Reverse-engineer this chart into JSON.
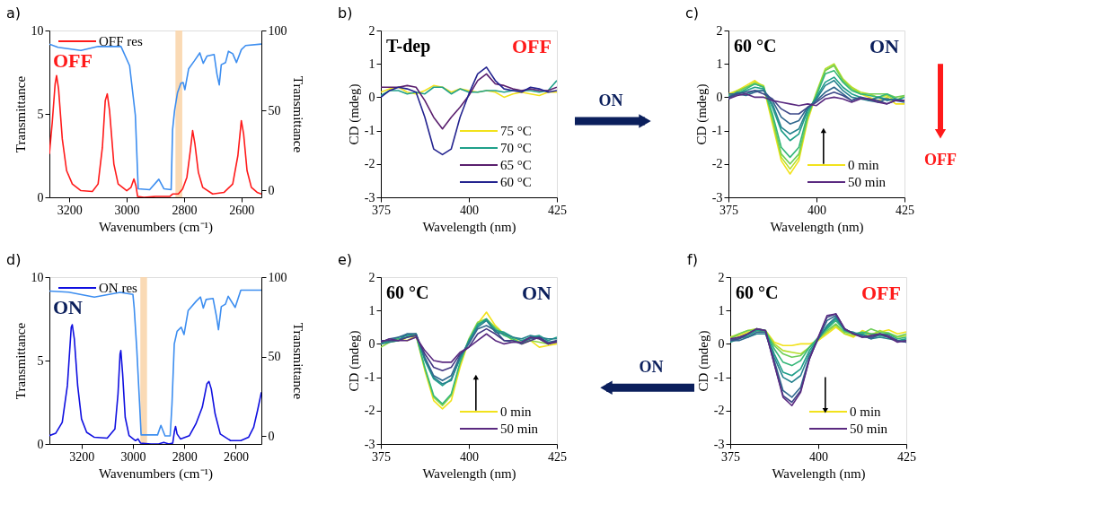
{
  "chart_data": [
    {
      "type": "line",
      "title": "a)",
      "xlabel": "Wavenumbers (cm⁻¹)",
      "ylabel": "Transmittance",
      "y2label": "Transmittance",
      "xlim": [
        3270,
        2530
      ],
      "xticks": [
        3200,
        3000,
        2800,
        2600
      ],
      "ylim": [
        0,
        10
      ],
      "yticks": [
        0,
        5,
        10
      ],
      "y2lim": [
        -4.3,
        100
      ],
      "y2ticks": [
        0,
        50,
        100
      ],
      "grid": false,
      "legend": "top left",
      "annotations": [
        "OFF"
      ],
      "bands": [
        {
          "axis": "x",
          "from": 2830,
          "to": 2806,
          "color": "#f9d3a8"
        }
      ],
      "series": [
        {
          "name": "OFF res",
          "color": "#ff1a1a",
          "x": [
            3270,
            3260,
            3250,
            3245,
            3238,
            3225,
            3210,
            3190,
            3160,
            3120,
            3100,
            3085,
            3075,
            3068,
            3060,
            3045,
            3030,
            3000,
            2985,
            2975,
            2968,
            2962,
            2940,
            2900,
            2850,
            2840,
            2820,
            2805,
            2790,
            2778,
            2770,
            2762,
            2750,
            2735,
            2700,
            2660,
            2630,
            2612,
            2600,
            2592,
            2580,
            2565,
            2545,
            2530
          ],
          "values": [
            2.6,
            4.5,
            6.8,
            7.3,
            6.5,
            3.5,
            1.6,
            0.8,
            0.4,
            0.35,
            0.8,
            3.0,
            5.8,
            6.2,
            5.2,
            2.0,
            0.8,
            0.4,
            0.6,
            1.1,
            0.7,
            0.05,
            0.0,
            0.05,
            0.05,
            0.2,
            0.2,
            0.5,
            1.2,
            2.8,
            4.0,
            3.2,
            1.5,
            0.6,
            0.2,
            0.3,
            0.8,
            2.5,
            4.6,
            3.8,
            1.6,
            0.6,
            0.3,
            0.2
          ]
        },
        {
          "color": "#3d8ef0",
          "axis": "y2",
          "x": [
            3270,
            3240,
            3160,
            3100,
            3020,
            2990,
            2970,
            2960,
            2920,
            2888,
            2870,
            2845,
            2840,
            2833,
            2823,
            2811,
            2803,
            2797,
            2784,
            2764,
            2745,
            2733,
            2720,
            2695,
            2685,
            2677,
            2670,
            2655,
            2645,
            2630,
            2617,
            2600,
            2585,
            2530
          ],
          "values": [
            91.5,
            89.5,
            87.5,
            90,
            90,
            78,
            47,
            1,
            0.5,
            7,
            1,
            0.5,
            38,
            50,
            61,
            67,
            67.5,
            63,
            76,
            81,
            86,
            79.5,
            84,
            85,
            72.6,
            66,
            78.6,
            80,
            87,
            85.5,
            80,
            88,
            90.6,
            91.5
          ]
        }
      ]
    },
    {
      "type": "line",
      "title": "b)",
      "xlabel": "Wavelength (nm)",
      "ylabel": "CD (mdeg)",
      "x": [
        375,
        377.5,
        380,
        382.5,
        385,
        387.5,
        390,
        392.5,
        395,
        397.5,
        400,
        402.5,
        405,
        407.5,
        410,
        412.5,
        415,
        417.5,
        420,
        422.5,
        425
      ],
      "xlim": [
        375,
        425
      ],
      "xticks": [
        375,
        400,
        425
      ],
      "ylim": [
        -3,
        2
      ],
      "yticks": [
        -3,
        -2,
        -1,
        0,
        1,
        2
      ],
      "grid": false,
      "legend": "bottom right",
      "annotations": [
        "T-dep",
        "OFF",
        "ON"
      ],
      "series": [
        {
          "name": "75 °C",
          "color": "#f2e21c",
          "values": [
            0.15,
            0.25,
            0.3,
            0.15,
            0.1,
            0.2,
            0.35,
            0.3,
            0.15,
            0.25,
            0.2,
            0.15,
            0.2,
            0.15,
            0.0,
            0.1,
            0.15,
            0.1,
            0.05,
            0.15,
            0.15
          ]
        },
        {
          "name": "70 °C",
          "color": "#1fa08a",
          "values": [
            0.05,
            0.2,
            0.2,
            0.1,
            0.15,
            0.1,
            0.3,
            0.3,
            0.1,
            0.25,
            0.15,
            0.15,
            0.2,
            0.2,
            0.15,
            0.2,
            0.2,
            0.2,
            0.15,
            0.2,
            0.5
          ]
        },
        {
          "name": "65 °C",
          "color": "#5a1f6e",
          "values": [
            0.3,
            0.3,
            0.3,
            0.35,
            0.3,
            -0.1,
            -0.6,
            -0.95,
            -0.6,
            -0.3,
            0.05,
            0.5,
            0.7,
            0.4,
            0.35,
            0.25,
            0.2,
            0.25,
            0.2,
            0.2,
            0.3
          ]
        },
        {
          "name": "60 °C",
          "color": "#23238f",
          "values": [
            0.0,
            0.2,
            0.3,
            0.25,
            0.15,
            -0.6,
            -1.55,
            -1.72,
            -1.55,
            -0.6,
            0.1,
            0.7,
            0.9,
            0.5,
            0.25,
            0.2,
            0.15,
            0.3,
            0.25,
            0.15,
            0.2
          ]
        }
      ]
    },
    {
      "type": "line",
      "title": "c)",
      "xlabel": "Wavelength (nm)",
      "ylabel": "CD (mdeg)",
      "x": [
        375,
        377.5,
        380,
        382.5,
        385,
        387.5,
        390,
        392.5,
        395,
        397.5,
        400,
        402.5,
        405,
        407.5,
        410,
        412.5,
        415,
        417.5,
        420,
        422.5,
        425
      ],
      "xlim": [
        375,
        425
      ],
      "xticks": [
        375,
        400,
        425
      ],
      "ylim": [
        -3,
        2
      ],
      "yticks": [
        -3,
        -2,
        -1,
        0,
        1,
        2
      ],
      "grid": false,
      "legend": "bottom right",
      "annotations": [
        "60 °C",
        "ON",
        "OFF"
      ],
      "series": [
        {
          "name": "0 min",
          "color": "#f2e21c",
          "values": [
            0.1,
            0.2,
            0.35,
            0.5,
            0.3,
            -0.8,
            -1.9,
            -2.3,
            -1.9,
            -0.7,
            0.1,
            0.8,
            0.95,
            0.5,
            0.3,
            0.1,
            0.0,
            -0.1,
            0.0,
            -0.2,
            -0.2
          ]
        },
        {
          "color": "#b5de2b",
          "values": [
            0.05,
            0.2,
            0.3,
            0.45,
            0.35,
            -0.7,
            -1.8,
            -2.15,
            -1.8,
            -0.6,
            0.15,
            0.85,
            1.0,
            0.55,
            0.3,
            0.15,
            0.1,
            0.0,
            0.05,
            -0.1,
            0.05
          ]
        },
        {
          "color": "#6ece58",
          "values": [
            0.0,
            0.15,
            0.3,
            0.4,
            0.3,
            -0.6,
            -1.7,
            -2.0,
            -1.7,
            -0.6,
            0.1,
            0.8,
            0.95,
            0.5,
            0.25,
            0.1,
            0.1,
            0.1,
            0.1,
            0.0,
            0.05
          ]
        },
        {
          "color": "#35b779",
          "values": [
            0.05,
            0.1,
            0.25,
            0.4,
            0.3,
            -0.5,
            -1.5,
            -1.8,
            -1.5,
            -0.5,
            0.05,
            0.7,
            0.8,
            0.45,
            0.2,
            0.1,
            0.05,
            0.0,
            0.1,
            -0.05,
            -0.1
          ]
        },
        {
          "color": "#1f9e89",
          "values": [
            -0.05,
            0.1,
            0.2,
            0.3,
            0.25,
            -0.3,
            -1.0,
            -1.3,
            -1.1,
            -0.4,
            0.0,
            0.45,
            0.6,
            0.3,
            0.1,
            0.0,
            -0.1,
            0.0,
            -0.05,
            -0.1,
            0.0
          ]
        },
        {
          "color": "#26828e",
          "values": [
            0.0,
            0.15,
            0.1,
            0.2,
            0.2,
            -0.2,
            -0.9,
            -1.1,
            -0.95,
            -0.35,
            -0.05,
            0.35,
            0.5,
            0.2,
            0.0,
            -0.05,
            -0.1,
            0.0,
            -0.1,
            -0.05,
            -0.1
          ]
        },
        {
          "color": "#31688e",
          "values": [
            0.1,
            0.1,
            0.05,
            0.15,
            0.2,
            -0.1,
            -0.6,
            -0.8,
            -0.7,
            -0.3,
            -0.1,
            0.15,
            0.3,
            0.1,
            -0.1,
            0.0,
            -0.1,
            -0.15,
            -0.05,
            -0.1,
            -0.15
          ]
        },
        {
          "color": "#3e4989",
          "values": [
            0.0,
            0.1,
            0.15,
            0.2,
            0.1,
            -0.05,
            -0.35,
            -0.5,
            -0.5,
            -0.3,
            -0.15,
            0.05,
            0.15,
            0.05,
            -0.1,
            0.0,
            -0.05,
            -0.1,
            -0.2,
            -0.1,
            -0.1
          ]
        },
        {
          "name": "50 min",
          "color": "#5a2a80",
          "values": [
            -0.05,
            0.05,
            0.1,
            0.0,
            0.0,
            -0.1,
            -0.15,
            -0.2,
            -0.25,
            -0.2,
            -0.25,
            -0.05,
            0.0,
            -0.05,
            -0.15,
            -0.05,
            -0.05,
            -0.15,
            -0.2,
            -0.1,
            -0.1
          ]
        }
      ]
    },
    {
      "type": "line",
      "title": "d)",
      "xlabel": "Wavenumbers (cm⁻¹)",
      "ylabel": "Transmittance",
      "y2label": "Transmittance",
      "xlim": [
        3325,
        2500
      ],
      "xticks": [
        3200,
        3000,
        2800,
        2600
      ],
      "ylim": [
        0,
        10
      ],
      "yticks": [
        0,
        5,
        10
      ],
      "y2lim": [
        -4.8,
        100
      ],
      "y2ticks": [
        0,
        50,
        100
      ],
      "grid": false,
      "legend": "top left",
      "annotations": [
        "ON"
      ],
      "bands": [
        {
          "axis": "x",
          "from": 2971,
          "to": 2945,
          "color": "#f9d3a8"
        }
      ],
      "series": [
        {
          "name": "ON res",
          "color": "#1010e0",
          "x": [
            3325,
            3300,
            3275,
            3255,
            3240,
            3236,
            3228,
            3215,
            3200,
            3180,
            3150,
            3100,
            3070,
            3058,
            3050,
            3047,
            3040,
            3030,
            3015,
            2990,
            2980,
            2970,
            2930,
            2900,
            2880,
            2860,
            2845,
            2838,
            2834,
            2828,
            2815,
            2780,
            2755,
            2730,
            2712,
            2704,
            2695,
            2680,
            2660,
            2620,
            2580,
            2550,
            2530,
            2515,
            2500
          ],
          "values": [
            0.5,
            0.65,
            1.3,
            3.5,
            7.0,
            7.15,
            6.3,
            3.5,
            1.5,
            0.7,
            0.4,
            0.35,
            0.9,
            3.0,
            5.4,
            5.6,
            4.2,
            1.6,
            0.5,
            0.2,
            0.3,
            0.05,
            0.0,
            0.0,
            0.1,
            0.0,
            0.05,
            0.8,
            1.05,
            0.6,
            0.3,
            0.5,
            1.2,
            2.2,
            3.6,
            3.75,
            3.3,
            1.8,
            0.6,
            0.2,
            0.2,
            0.4,
            1.0,
            2.0,
            3.1
          ]
        },
        {
          "color": "#3d8ef0",
          "axis": "y2",
          "x": [
            3325,
            3250,
            3150,
            3050,
            3000,
            2995,
            2985,
            2974,
            2968,
            2904,
            2891,
            2875,
            2855,
            2848,
            2839,
            2828,
            2812,
            2801,
            2785,
            2753,
            2737,
            2726,
            2715,
            2688,
            2675,
            2667,
            2656,
            2640,
            2629,
            2602,
            2580,
            2500
          ],
          "values": [
            91.3,
            90.6,
            87.5,
            90.4,
            89.2,
            80.6,
            55,
            20.6,
            0.9,
            0.9,
            6.9,
            0.3,
            0.3,
            20,
            58,
            66,
            68.6,
            64,
            79,
            85,
            87.5,
            80.6,
            86,
            86.6,
            75.5,
            67,
            81.5,
            83,
            88,
            81,
            91.8,
            91.8
          ]
        }
      ]
    },
    {
      "type": "line",
      "title": "e)",
      "xlabel": "Wavelength (nm)",
      "ylabel": "CD (mdeg)",
      "x": [
        375,
        377.5,
        380,
        382.5,
        385,
        387.5,
        390,
        392.5,
        395,
        397.5,
        400,
        402.5,
        405,
        407.5,
        410,
        412.5,
        415,
        417.5,
        420,
        422.5,
        425
      ],
      "xlim": [
        375,
        425
      ],
      "xticks": [
        375,
        400,
        425
      ],
      "ylim": [
        -3,
        2
      ],
      "yticks": [
        -3,
        -2,
        -1,
        0,
        1,
        2
      ],
      "grid": false,
      "legend": "bottom right",
      "annotations": [
        "60 °C",
        "ON"
      ],
      "series": [
        {
          "name": "0 min",
          "color": "#f2e21c",
          "values": [
            0.0,
            0.1,
            0.15,
            0.1,
            0.25,
            -0.8,
            -1.7,
            -1.95,
            -1.7,
            -0.7,
            0.1,
            0.6,
            0.95,
            0.55,
            0.3,
            0.2,
            0.0,
            0.1,
            -0.1,
            -0.05,
            0.0
          ]
        },
        {
          "color": "#8fd744",
          "values": [
            -0.1,
            0.05,
            0.1,
            0.2,
            0.3,
            -0.75,
            -1.6,
            -1.85,
            -1.55,
            -0.6,
            0.15,
            0.65,
            0.75,
            0.5,
            0.3,
            0.1,
            0.05,
            0.1,
            0.05,
            0.0,
            0.05
          ]
        },
        {
          "color": "#35b779",
          "values": [
            0.0,
            0.1,
            0.15,
            0.2,
            0.25,
            -0.7,
            -1.55,
            -1.8,
            -1.5,
            -0.55,
            0.1,
            0.6,
            0.7,
            0.45,
            0.25,
            0.15,
            0.0,
            0.2,
            0.15,
            0.0,
            0.1
          ]
        },
        {
          "color": "#1f9e89",
          "values": [
            0.05,
            0.1,
            0.2,
            0.25,
            0.3,
            -0.5,
            -1.05,
            -1.25,
            -1.05,
            -0.45,
            0.1,
            0.55,
            0.75,
            0.4,
            0.35,
            0.2,
            0.1,
            0.2,
            0.25,
            0.1,
            0.2
          ]
        },
        {
          "color": "#26828e",
          "values": [
            0.0,
            0.05,
            0.1,
            0.3,
            0.3,
            -0.45,
            -1.0,
            -1.2,
            -1.1,
            -0.4,
            0.05,
            0.5,
            0.7,
            0.35,
            0.3,
            0.2,
            0.15,
            0.25,
            0.2,
            0.15,
            0.15
          ]
        },
        {
          "color": "#31688e",
          "values": [
            0.05,
            0.15,
            0.2,
            0.3,
            0.3,
            -0.4,
            -0.95,
            -1.1,
            -0.95,
            -0.35,
            0.0,
            0.45,
            0.55,
            0.4,
            0.1,
            0.05,
            0.05,
            0.15,
            0.2,
            0.05,
            0.1
          ]
        },
        {
          "color": "#443983",
          "values": [
            0.1,
            0.1,
            0.1,
            0.2,
            0.25,
            -0.3,
            -0.7,
            -0.8,
            -0.7,
            -0.3,
            -0.1,
            0.3,
            0.45,
            0.3,
            0.1,
            0.1,
            0.0,
            0.1,
            0.2,
            0.0,
            0.1
          ]
        },
        {
          "name": "50 min",
          "color": "#5a2a80",
          "values": [
            0.05,
            0.15,
            0.1,
            0.1,
            0.2,
            -0.2,
            -0.5,
            -0.55,
            -0.55,
            -0.25,
            -0.1,
            0.1,
            0.3,
            0.1,
            0.0,
            0.05,
            0.05,
            0.2,
            0.15,
            0.0,
            0.05
          ]
        }
      ]
    },
    {
      "type": "line",
      "title": "f)",
      "xlabel": "Wavelength (nm)",
      "ylabel": "CD (mdeg)",
      "x": [
        375,
        377.5,
        380,
        382.5,
        385,
        387.5,
        390,
        392.5,
        395,
        397.5,
        400,
        402.5,
        405,
        407.5,
        410,
        412.5,
        415,
        417.5,
        420,
        422.5,
        425
      ],
      "xlim": [
        375,
        425
      ],
      "xticks": [
        375,
        400,
        425
      ],
      "ylim": [
        -3,
        2
      ],
      "yticks": [
        -3,
        -2,
        -1,
        0,
        1,
        2
      ],
      "grid": false,
      "legend": "bottom right",
      "annotations": [
        "60 °C",
        "OFF",
        "ON"
      ],
      "series": [
        {
          "name": "0 min",
          "color": "#f2e21c",
          "values": [
            0.2,
            0.25,
            0.35,
            0.4,
            0.4,
            0.05,
            -0.05,
            -0.05,
            0.0,
            0.0,
            0.1,
            0.3,
            0.5,
            0.3,
            0.2,
            0.4,
            0.3,
            0.35,
            0.42,
            0.3,
            0.36
          ]
        },
        {
          "color": "#b5de2b",
          "values": [
            0.2,
            0.3,
            0.4,
            0.45,
            0.4,
            0.0,
            -0.2,
            -0.25,
            -0.3,
            -0.1,
            0.15,
            0.35,
            0.55,
            0.3,
            0.25,
            0.35,
            0.25,
            0.4,
            0.3,
            0.2,
            0.25
          ]
        },
        {
          "color": "#6ece58",
          "values": [
            0.15,
            0.3,
            0.4,
            0.4,
            0.35,
            -0.05,
            -0.3,
            -0.4,
            -0.35,
            -0.1,
            0.15,
            0.4,
            0.6,
            0.35,
            0.3,
            0.3,
            0.45,
            0.35,
            0.33,
            0.22,
            0.3
          ]
        },
        {
          "color": "#35b779",
          "values": [
            0.1,
            0.2,
            0.3,
            0.45,
            0.4,
            -0.15,
            -0.55,
            -0.65,
            -0.5,
            -0.1,
            0.2,
            0.45,
            0.7,
            0.4,
            0.3,
            0.35,
            0.3,
            0.3,
            0.3,
            0.15,
            0.2
          ]
        },
        {
          "color": "#1f9e89",
          "values": [
            0.05,
            0.15,
            0.25,
            0.4,
            0.4,
            -0.3,
            -0.85,
            -0.95,
            -0.75,
            -0.2,
            0.15,
            0.5,
            0.75,
            0.45,
            0.3,
            0.3,
            0.2,
            0.25,
            0.2,
            0.1,
            0.15
          ]
        },
        {
          "color": "#26828e",
          "values": [
            0.1,
            0.2,
            0.2,
            0.3,
            0.3,
            -0.4,
            -1.0,
            -1.15,
            -0.95,
            -0.3,
            0.15,
            0.55,
            0.8,
            0.4,
            0.35,
            0.25,
            0.15,
            0.2,
            0.15,
            0.1,
            0.1
          ]
        },
        {
          "color": "#31688e",
          "values": [
            0.1,
            0.1,
            0.2,
            0.35,
            0.35,
            -0.5,
            -1.4,
            -1.6,
            -1.3,
            -0.4,
            0.15,
            0.7,
            0.85,
            0.45,
            0.3,
            0.25,
            0.15,
            0.3,
            0.2,
            0.1,
            0.05
          ]
        },
        {
          "color": "#3e4989",
          "values": [
            0.1,
            0.15,
            0.3,
            0.45,
            0.4,
            -0.6,
            -1.55,
            -1.75,
            -1.4,
            -0.45,
            0.2,
            0.8,
            0.9,
            0.45,
            0.3,
            0.2,
            0.2,
            0.3,
            0.25,
            0.1,
            0.05
          ]
        },
        {
          "name": "50 min",
          "color": "#5a2a80",
          "values": [
            0.15,
            0.2,
            0.3,
            0.45,
            0.4,
            -0.6,
            -1.6,
            -1.85,
            -1.45,
            -0.45,
            0.2,
            0.85,
            0.9,
            0.45,
            0.3,
            0.2,
            0.25,
            0.3,
            0.2,
            0.05,
            0.1
          ]
        }
      ]
    }
  ]
}
